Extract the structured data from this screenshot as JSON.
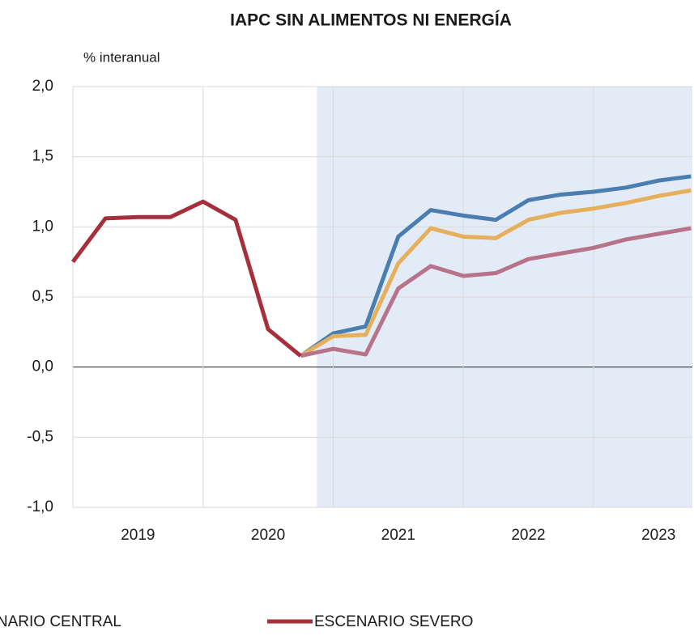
{
  "chart_data": {
    "type": "line",
    "title": "IAPC SIN ALIMENTOS NI ENERGÍA",
    "y_label": "% interanual",
    "x": [
      2019,
      2019.25,
      2019.5,
      2019.75,
      2020,
      2020.25,
      2020.5,
      2020.75,
      2021,
      2021.25,
      2021.5,
      2021.75,
      2022,
      2022.25,
      2022.5,
      2022.75,
      2023,
      2023.25,
      2023.5,
      2023.75
    ],
    "xlim": [
      2019,
      2023.76
    ],
    "xticks": [
      {
        "value": 2019.5,
        "label": "2019"
      },
      {
        "value": 2020.5,
        "label": "2020"
      },
      {
        "value": 2021.5,
        "label": "2021"
      },
      {
        "value": 2022.5,
        "label": "2022"
      },
      {
        "value": 2023.5,
        "label": "2023"
      }
    ],
    "xgrid": [
      2020,
      2021,
      2022,
      2023
    ],
    "shaded_region": [
      2020.875,
      2023.76
    ],
    "ylim": [
      -1.0,
      2.0
    ],
    "yticks": [
      {
        "value": 2.0,
        "label": "2,0"
      },
      {
        "value": 1.5,
        "label": "1,5"
      },
      {
        "value": 1.0,
        "label": "1,0"
      },
      {
        "value": 0.5,
        "label": "0,5"
      },
      {
        "value": 0.0,
        "label": "0,0"
      },
      {
        "value": -0.5,
        "label": "-0,5"
      },
      {
        "value": -1.0,
        "label": "-1,0"
      }
    ],
    "grid": true,
    "series": [
      {
        "name": "ESCENARIO CENTRAL",
        "color": "#4a7eb0",
        "values": [
          null,
          null,
          null,
          null,
          null,
          null,
          null,
          0.08,
          0.24,
          0.29,
          0.93,
          1.12,
          1.08,
          1.05,
          1.19,
          1.23,
          1.25,
          1.28,
          1.33,
          1.36
        ]
      },
      {
        "color": "#e6af5c",
        "values": [
          null,
          null,
          null,
          null,
          null,
          null,
          null,
          0.08,
          0.22,
          0.23,
          0.74,
          0.99,
          0.93,
          0.92,
          1.05,
          1.1,
          1.13,
          1.17,
          1.22,
          1.26
        ]
      },
      {
        "color": "#b6738a",
        "values": [
          null,
          null,
          null,
          null,
          null,
          null,
          null,
          0.08,
          0.13,
          0.09,
          0.56,
          0.72,
          0.65,
          0.67,
          0.77,
          0.81,
          0.85,
          0.91,
          0.95,
          0.99
        ]
      },
      {
        "name": "ESCENARIO SEVERO",
        "color": "#a52f3a",
        "values": [
          0.75,
          1.06,
          1.07,
          1.07,
          1.18,
          1.05,
          0.27,
          0.08,
          null,
          null,
          null,
          null,
          null,
          null,
          null,
          null,
          null,
          null,
          null,
          null
        ]
      }
    ]
  }
}
